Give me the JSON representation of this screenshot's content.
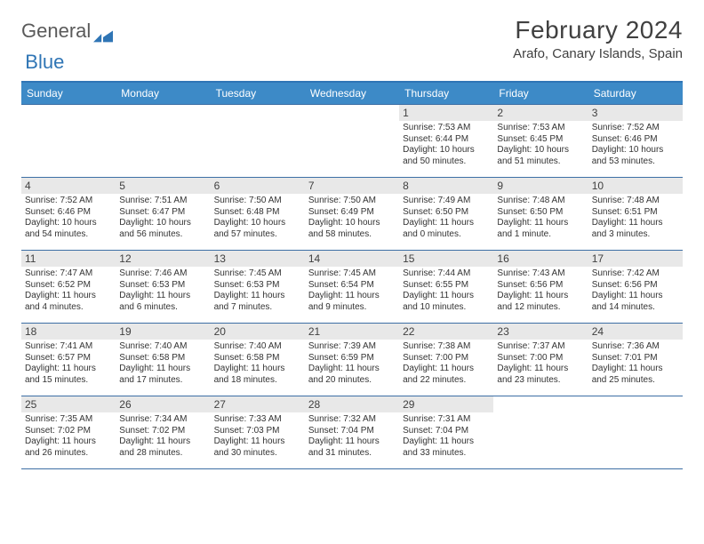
{
  "brand": {
    "part1": "General",
    "part2": "Blue"
  },
  "title": "February 2024",
  "location": "Arafo, Canary Islands, Spain",
  "colors": {
    "header_bg": "#3d8ac7",
    "border": "#3d6fa5",
    "daynum_bg": "#e8e8e8",
    "text": "#333333",
    "brand_gray": "#5a5a5a",
    "brand_blue": "#2f75b5"
  },
  "day_names": [
    "Sunday",
    "Monday",
    "Tuesday",
    "Wednesday",
    "Thursday",
    "Friday",
    "Saturday"
  ],
  "weeks": [
    [
      null,
      null,
      null,
      null,
      {
        "d": "1",
        "sr": "Sunrise: 7:53 AM",
        "ss": "Sunset: 6:44 PM",
        "dl1": "Daylight: 10 hours",
        "dl2": "and 50 minutes."
      },
      {
        "d": "2",
        "sr": "Sunrise: 7:53 AM",
        "ss": "Sunset: 6:45 PM",
        "dl1": "Daylight: 10 hours",
        "dl2": "and 51 minutes."
      },
      {
        "d": "3",
        "sr": "Sunrise: 7:52 AM",
        "ss": "Sunset: 6:46 PM",
        "dl1": "Daylight: 10 hours",
        "dl2": "and 53 minutes."
      }
    ],
    [
      {
        "d": "4",
        "sr": "Sunrise: 7:52 AM",
        "ss": "Sunset: 6:46 PM",
        "dl1": "Daylight: 10 hours",
        "dl2": "and 54 minutes."
      },
      {
        "d": "5",
        "sr": "Sunrise: 7:51 AM",
        "ss": "Sunset: 6:47 PM",
        "dl1": "Daylight: 10 hours",
        "dl2": "and 56 minutes."
      },
      {
        "d": "6",
        "sr": "Sunrise: 7:50 AM",
        "ss": "Sunset: 6:48 PM",
        "dl1": "Daylight: 10 hours",
        "dl2": "and 57 minutes."
      },
      {
        "d": "7",
        "sr": "Sunrise: 7:50 AM",
        "ss": "Sunset: 6:49 PM",
        "dl1": "Daylight: 10 hours",
        "dl2": "and 58 minutes."
      },
      {
        "d": "8",
        "sr": "Sunrise: 7:49 AM",
        "ss": "Sunset: 6:50 PM",
        "dl1": "Daylight: 11 hours",
        "dl2": "and 0 minutes."
      },
      {
        "d": "9",
        "sr": "Sunrise: 7:48 AM",
        "ss": "Sunset: 6:50 PM",
        "dl1": "Daylight: 11 hours",
        "dl2": "and 1 minute."
      },
      {
        "d": "10",
        "sr": "Sunrise: 7:48 AM",
        "ss": "Sunset: 6:51 PM",
        "dl1": "Daylight: 11 hours",
        "dl2": "and 3 minutes."
      }
    ],
    [
      {
        "d": "11",
        "sr": "Sunrise: 7:47 AM",
        "ss": "Sunset: 6:52 PM",
        "dl1": "Daylight: 11 hours",
        "dl2": "and 4 minutes."
      },
      {
        "d": "12",
        "sr": "Sunrise: 7:46 AM",
        "ss": "Sunset: 6:53 PM",
        "dl1": "Daylight: 11 hours",
        "dl2": "and 6 minutes."
      },
      {
        "d": "13",
        "sr": "Sunrise: 7:45 AM",
        "ss": "Sunset: 6:53 PM",
        "dl1": "Daylight: 11 hours",
        "dl2": "and 7 minutes."
      },
      {
        "d": "14",
        "sr": "Sunrise: 7:45 AM",
        "ss": "Sunset: 6:54 PM",
        "dl1": "Daylight: 11 hours",
        "dl2": "and 9 minutes."
      },
      {
        "d": "15",
        "sr": "Sunrise: 7:44 AM",
        "ss": "Sunset: 6:55 PM",
        "dl1": "Daylight: 11 hours",
        "dl2": "and 10 minutes."
      },
      {
        "d": "16",
        "sr": "Sunrise: 7:43 AM",
        "ss": "Sunset: 6:56 PM",
        "dl1": "Daylight: 11 hours",
        "dl2": "and 12 minutes."
      },
      {
        "d": "17",
        "sr": "Sunrise: 7:42 AM",
        "ss": "Sunset: 6:56 PM",
        "dl1": "Daylight: 11 hours",
        "dl2": "and 14 minutes."
      }
    ],
    [
      {
        "d": "18",
        "sr": "Sunrise: 7:41 AM",
        "ss": "Sunset: 6:57 PM",
        "dl1": "Daylight: 11 hours",
        "dl2": "and 15 minutes."
      },
      {
        "d": "19",
        "sr": "Sunrise: 7:40 AM",
        "ss": "Sunset: 6:58 PM",
        "dl1": "Daylight: 11 hours",
        "dl2": "and 17 minutes."
      },
      {
        "d": "20",
        "sr": "Sunrise: 7:40 AM",
        "ss": "Sunset: 6:58 PM",
        "dl1": "Daylight: 11 hours",
        "dl2": "and 18 minutes."
      },
      {
        "d": "21",
        "sr": "Sunrise: 7:39 AM",
        "ss": "Sunset: 6:59 PM",
        "dl1": "Daylight: 11 hours",
        "dl2": "and 20 minutes."
      },
      {
        "d": "22",
        "sr": "Sunrise: 7:38 AM",
        "ss": "Sunset: 7:00 PM",
        "dl1": "Daylight: 11 hours",
        "dl2": "and 22 minutes."
      },
      {
        "d": "23",
        "sr": "Sunrise: 7:37 AM",
        "ss": "Sunset: 7:00 PM",
        "dl1": "Daylight: 11 hours",
        "dl2": "and 23 minutes."
      },
      {
        "d": "24",
        "sr": "Sunrise: 7:36 AM",
        "ss": "Sunset: 7:01 PM",
        "dl1": "Daylight: 11 hours",
        "dl2": "and 25 minutes."
      }
    ],
    [
      {
        "d": "25",
        "sr": "Sunrise: 7:35 AM",
        "ss": "Sunset: 7:02 PM",
        "dl1": "Daylight: 11 hours",
        "dl2": "and 26 minutes."
      },
      {
        "d": "26",
        "sr": "Sunrise: 7:34 AM",
        "ss": "Sunset: 7:02 PM",
        "dl1": "Daylight: 11 hours",
        "dl2": "and 28 minutes."
      },
      {
        "d": "27",
        "sr": "Sunrise: 7:33 AM",
        "ss": "Sunset: 7:03 PM",
        "dl1": "Daylight: 11 hours",
        "dl2": "and 30 minutes."
      },
      {
        "d": "28",
        "sr": "Sunrise: 7:32 AM",
        "ss": "Sunset: 7:04 PM",
        "dl1": "Daylight: 11 hours",
        "dl2": "and 31 minutes."
      },
      {
        "d": "29",
        "sr": "Sunrise: 7:31 AM",
        "ss": "Sunset: 7:04 PM",
        "dl1": "Daylight: 11 hours",
        "dl2": "and 33 minutes."
      },
      null,
      null
    ]
  ]
}
